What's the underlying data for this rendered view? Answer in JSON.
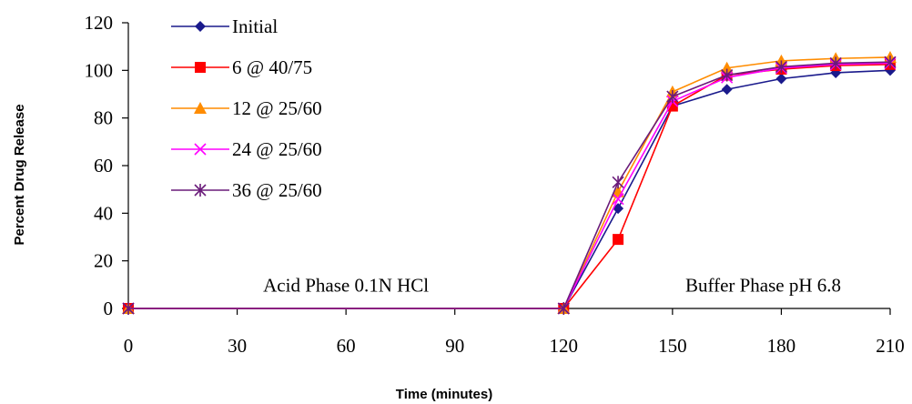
{
  "chart_data": {
    "type": "line",
    "title": "",
    "xlabel": "Time (minutes)",
    "ylabel": "Percent Drug Release",
    "xlim": [
      0,
      210
    ],
    "ylim": [
      0,
      120
    ],
    "xticks": [
      0,
      30,
      60,
      90,
      120,
      150,
      180,
      210
    ],
    "yticks": [
      0,
      20,
      40,
      60,
      80,
      100,
      120
    ],
    "x": [
      0,
      120,
      135,
      150,
      165,
      180,
      195,
      210
    ],
    "series": [
      {
        "name": "Initial",
        "color": "#1a1a8c",
        "marker": "diamond",
        "values": [
          0,
          0,
          42,
          85,
          92,
          96.5,
          99,
          100
        ]
      },
      {
        "name": "6 @ 40/75",
        "color": "#ff0000",
        "marker": "square",
        "values": [
          0,
          0,
          29,
          85,
          98,
          100.5,
          102,
          102.5
        ]
      },
      {
        "name": "12 @ 25/60",
        "color": "#ff8c00",
        "marker": "triangle",
        "values": [
          0,
          0,
          49,
          91,
          101,
          104,
          105,
          105.5
        ]
      },
      {
        "name": "24 @ 25/60",
        "color": "#ff00ff",
        "marker": "x",
        "values": [
          0,
          0,
          46,
          87,
          97,
          101,
          102.5,
          103
        ]
      },
      {
        "name": "36 @ 25/60",
        "color": "#6a1b7a",
        "marker": "asterisk",
        "values": [
          0,
          0,
          53,
          89,
          98,
          101.5,
          103,
          103.5
        ]
      }
    ],
    "annotations": [
      {
        "text": "Acid Phase 0.1N HCl",
        "x": 60,
        "y": 7
      },
      {
        "text": "Buffer Phase pH 6.8",
        "x": 175,
        "y": 7
      }
    ],
    "grid": false,
    "legend_position": "top-left"
  }
}
